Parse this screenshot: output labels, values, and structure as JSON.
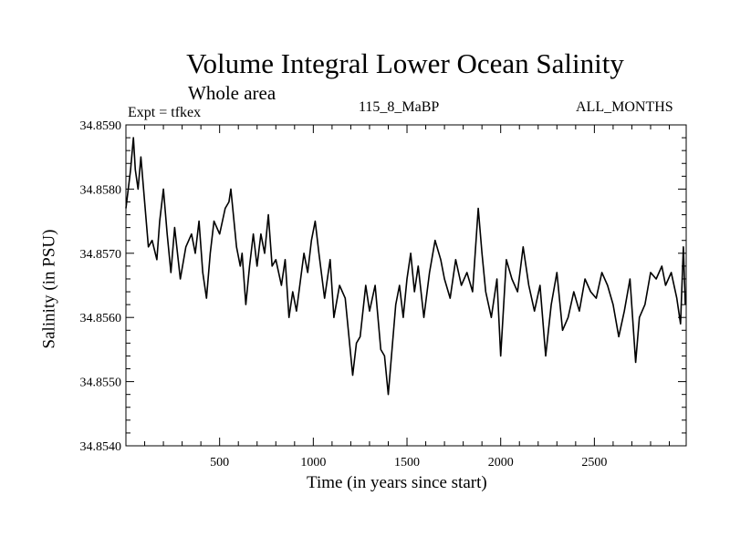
{
  "chart_data": {
    "type": "line",
    "title": "Volume Integral Lower Ocean Salinity",
    "subtitle": "Whole area",
    "annotations": {
      "experiment": "Expt = tfkex",
      "period": "115_8_MaBP",
      "months": "ALL_MONTHS"
    },
    "xlabel": "Time (in years since start)",
    "ylabel": "Salinity (in PSU)",
    "xlim": [
      0,
      2990
    ],
    "ylim": [
      34.854,
      34.859
    ],
    "x_ticks": [
      500,
      1000,
      1500,
      2000,
      2500
    ],
    "x_tick_labels": [
      "500",
      "1000",
      "1500",
      "2000",
      "2500"
    ],
    "y_ticks": [
      34.854,
      34.855,
      34.856,
      34.857,
      34.858,
      34.859
    ],
    "y_tick_labels": [
      "34.8540",
      "34.8550",
      "34.8560",
      "34.8570",
      "34.8580",
      "34.8590"
    ],
    "grid": false,
    "series": [
      {
        "color": "#000000",
        "x": [
          0,
          25,
          40,
          50,
          65,
          80,
          100,
          120,
          140,
          165,
          180,
          200,
          220,
          240,
          260,
          290,
          320,
          350,
          370,
          390,
          410,
          430,
          450,
          470,
          500,
          530,
          550,
          560,
          590,
          610,
          620,
          640,
          660,
          680,
          700,
          720,
          740,
          760,
          780,
          800,
          830,
          850,
          870,
          890,
          910,
          950,
          970,
          990,
          1010,
          1030,
          1060,
          1090,
          1110,
          1140,
          1170,
          1190,
          1210,
          1230,
          1250,
          1280,
          1300,
          1330,
          1360,
          1380,
          1400,
          1420,
          1440,
          1460,
          1480,
          1500,
          1520,
          1540,
          1560,
          1590,
          1620,
          1650,
          1680,
          1700,
          1730,
          1760,
          1790,
          1820,
          1850,
          1880,
          1900,
          1920,
          1950,
          1980,
          2000,
          2030,
          2060,
          2090,
          2120,
          2150,
          2180,
          2210,
          2240,
          2270,
          2300,
          2330,
          2360,
          2390,
          2420,
          2450,
          2480,
          2510,
          2540,
          2570,
          2600,
          2630,
          2660,
          2690,
          2720,
          2740,
          2770,
          2800,
          2830,
          2860,
          2880,
          2910,
          2940,
          2960,
          2975,
          2985
        ],
        "values": [
          34.8577,
          34.8583,
          34.8588,
          34.8583,
          34.858,
          34.8585,
          34.8578,
          34.8571,
          34.8572,
          34.8569,
          34.8575,
          34.858,
          34.8573,
          34.8567,
          34.8574,
          34.8566,
          34.8571,
          34.8573,
          34.857,
          34.8575,
          34.8567,
          34.8563,
          34.857,
          34.8575,
          34.8573,
          34.8577,
          34.8578,
          34.858,
          34.8571,
          34.8568,
          34.857,
          34.8562,
          34.8568,
          34.8573,
          34.8568,
          34.8573,
          34.857,
          34.8576,
          34.8568,
          34.8569,
          34.8565,
          34.8569,
          34.856,
          34.8564,
          34.8561,
          34.857,
          34.8567,
          34.8572,
          34.8575,
          34.857,
          34.8563,
          34.8569,
          34.856,
          34.8565,
          34.8563,
          34.8557,
          34.8551,
          34.8556,
          34.8557,
          34.8565,
          34.8561,
          34.8565,
          34.8555,
          34.8554,
          34.8548,
          34.8555,
          34.8562,
          34.8565,
          34.856,
          34.8566,
          34.857,
          34.8564,
          34.8568,
          34.856,
          34.8567,
          34.8572,
          34.8569,
          34.8566,
          34.8563,
          34.8569,
          34.8565,
          34.8567,
          34.8564,
          34.8577,
          34.857,
          34.8564,
          34.856,
          34.8566,
          34.8554,
          34.8569,
          34.8566,
          34.8564,
          34.8571,
          34.8565,
          34.8561,
          34.8565,
          34.8554,
          34.8562,
          34.8567,
          34.8558,
          34.856,
          34.8564,
          34.8561,
          34.8566,
          34.8564,
          34.8563,
          34.8567,
          34.8565,
          34.8562,
          34.8557,
          34.8561,
          34.8566,
          34.8553,
          34.856,
          34.8562,
          34.8567,
          34.8566,
          34.8568,
          34.8565,
          34.8567,
          34.8563,
          34.8559,
          34.8571,
          34.8562
        ]
      }
    ]
  }
}
